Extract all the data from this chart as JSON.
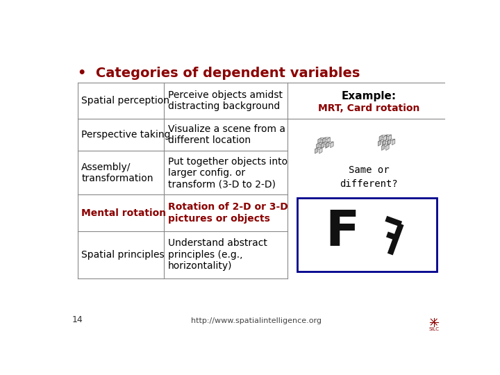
{
  "title": "Categories of dependent variables",
  "title_color": "#8B0000",
  "title_fontsize": 14,
  "bg_color": "#FFFFFF",
  "table_rows": [
    {
      "col1": "Spatial perception",
      "col2": "Perceive objects amidst\ndistracting background",
      "col1_bold": false,
      "col2_bold": false,
      "col1_color": "#000000",
      "col2_color": "#000000"
    },
    {
      "col1": "Perspective taking",
      "col2": "Visualize a scene from a\ndifferent location",
      "col1_bold": false,
      "col2_bold": false,
      "col1_color": "#000000",
      "col2_color": "#000000"
    },
    {
      "col1": "Assembly/\ntransformation",
      "col2": "Put together objects into\nlarger config. or\ntransform (3-D to 2-D)",
      "col1_bold": false,
      "col2_bold": false,
      "col1_color": "#000000",
      "col2_color": "#000000"
    },
    {
      "col1": "Mental rotation",
      "col2": "Rotation of 2-D or 3-D\npictures or objects",
      "col1_bold": true,
      "col2_bold": true,
      "col1_color": "#8B0000",
      "col2_color": "#8B0000"
    },
    {
      "col1": "Spatial principles",
      "col2": "Understand abstract\nprinciples (e.g.,\nhorizontality)",
      "col1_bold": false,
      "col2_bold": false,
      "col1_color": "#000000",
      "col2_color": "#000000"
    }
  ],
  "font_size": 10,
  "example_label": "Example:",
  "example_sublabel": "MRT, Card rotation",
  "example_sublabel_color": "#8B0000",
  "same_or_different": "Same or\ndifferent?",
  "footer": "http://www.spatialintelligence.org",
  "page_number": "14",
  "line_color": "#888888",
  "border_color": "#00008B"
}
